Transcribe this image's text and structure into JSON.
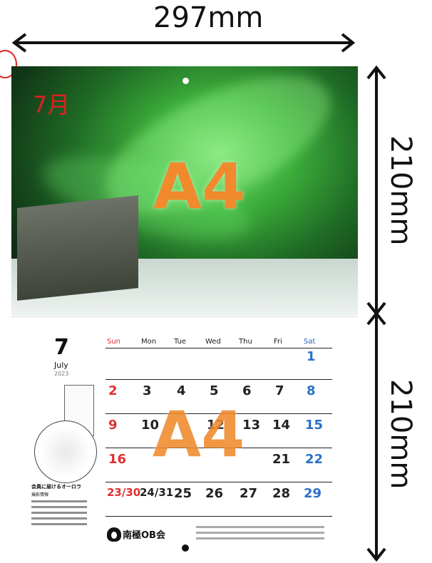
{
  "dimensions": {
    "width_label": "297mm",
    "upper_height_label": "210mm",
    "lower_height_label": "210mm"
  },
  "photo_page": {
    "month_label": "7月",
    "size_label": "A4"
  },
  "calendar_page": {
    "size_label": "A4",
    "month_number": "7",
    "month_name": "July",
    "year": "2023",
    "weekdays": [
      "Sun",
      "Mon",
      "Tue",
      "Wed",
      "Thu",
      "Fri",
      "Sat"
    ],
    "dates": {
      "sat1": "1",
      "sun2": "2",
      "mon3": "3",
      "tue4": "4",
      "wed5": "5",
      "thu6": "6",
      "fri7": "7",
      "sat8": "8",
      "sun9": "9",
      "mon10": "10",
      "wed12": "12",
      "thu13": "13",
      "fri14": "14",
      "sat15": "15",
      "sun16": "16",
      "fri21": "21",
      "sat22": "22",
      "sun23_30": "23/30",
      "mon24_31": "24/31",
      "tue25": "25",
      "wed26": "26",
      "thu27": "27",
      "fri28": "28",
      "sat29": "29"
    },
    "note_title": "会員に届けるオーロラ",
    "note_subtitle": "撮影情報",
    "organization": "南極OB会"
  },
  "colors": {
    "size_label": "#f08a2c",
    "month_red": "#e02020",
    "sunday": "#e03030",
    "saturday": "#2a70c8"
  }
}
